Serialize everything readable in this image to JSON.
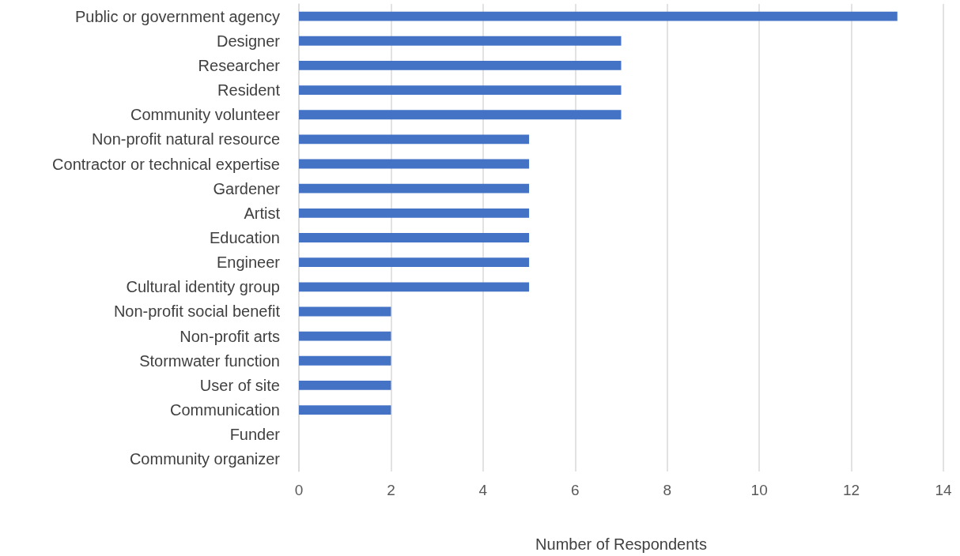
{
  "chart_data": {
    "type": "bar",
    "orientation": "horizontal",
    "xlabel": "Number of Respondents",
    "categories": [
      "Public or government agency",
      "Designer",
      "Researcher",
      "Resident",
      "Community volunteer",
      "Non-profit natural resource",
      "Contractor or technical expertise",
      "Gardener",
      "Artist",
      "Education",
      "Engineer",
      "Cultural identity group",
      "Non-profit social benefit",
      "Non-profit arts",
      "Stormwater function",
      "User of site",
      "Communication",
      "Funder",
      "Community organizer"
    ],
    "values": [
      13,
      7,
      7,
      7,
      7,
      5,
      5,
      5,
      5,
      5,
      5,
      5,
      2,
      2,
      2,
      2,
      2,
      0,
      0
    ],
    "color": "#4472c4",
    "xlim": [
      0,
      14
    ],
    "xticks": [
      0,
      2,
      4,
      6,
      8,
      10,
      12,
      14
    ],
    "grid": "x"
  }
}
